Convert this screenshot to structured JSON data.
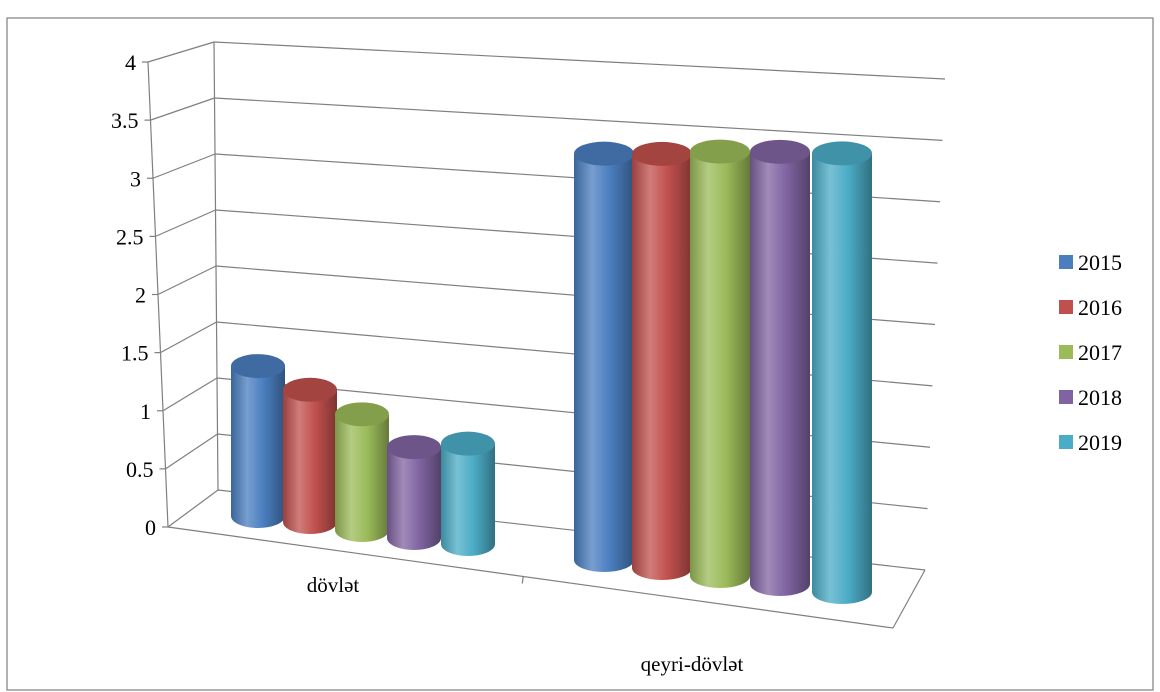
{
  "chart_data": {
    "type": "bar",
    "style": "3d-cylinder",
    "title": "",
    "categories": [
      "dövlət",
      "qeyri-dövlət"
    ],
    "series": [
      {
        "name": "2015",
        "color": "#4a7ebf",
        "values": [
          1.27,
          3.15
        ]
      },
      {
        "name": "2016",
        "color": "#c0504d",
        "values": [
          1.12,
          3.21
        ]
      },
      {
        "name": "2017",
        "color": "#9bbb59",
        "values": [
          0.98,
          3.29
        ]
      },
      {
        "name": "2018",
        "color": "#8064a2",
        "values": [
          0.77,
          3.35
        ]
      },
      {
        "name": "2019",
        "color": "#4bacc6",
        "values": [
          0.85,
          3.4
        ]
      }
    ],
    "yticks": [
      "0",
      "0.5",
      "1",
      "1.5",
      "2",
      "2.5",
      "3",
      "3.5",
      "4"
    ],
    "ylim": [
      0,
      4
    ],
    "grid": true,
    "legend_position": "right"
  }
}
